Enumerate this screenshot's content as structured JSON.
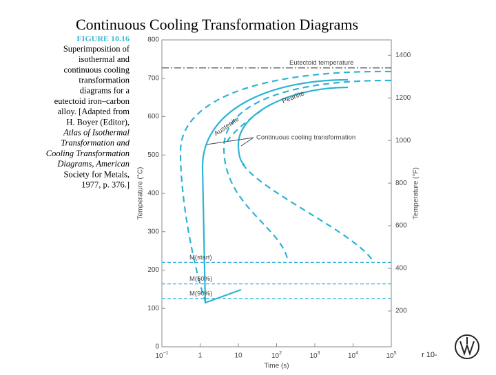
{
  "title": "Continuous Cooling Transformation Diagrams",
  "caption": {
    "figure": "FIGURE 10.16",
    "lines": [
      "Superimposition of",
      "isothermal and",
      "continuous cooling",
      "transformation",
      "diagrams for a",
      "eutectoid iron–carbon",
      "alloy. [Adapted from",
      "H. Boyer (Editor),",
      "Atlas of Isothermal",
      "Transformation and",
      "Cooling Transformation",
      "Diagrams, American",
      "Society for Metals,",
      "1977, p. 376.]"
    ]
  },
  "footer": "r 10-",
  "chart_data": {
    "type": "line",
    "xlabel": "Time (s)",
    "ylabel": "Temperature (°C)",
    "y2label": "Temperature (°F)",
    "xscale": "log",
    "xlim": [
      0.1,
      100000
    ],
    "xticks": [
      {
        "value": 0.1,
        "label": "10",
        "exponent": "−1"
      },
      1,
      10,
      {
        "value": 100,
        "label": "10",
        "exponent": "2"
      },
      {
        "value": 1000,
        "label": "10",
        "exponent": "3"
      },
      {
        "value": 10000,
        "label": "10",
        "exponent": "4"
      },
      {
        "value": 100000,
        "label": "10",
        "exponent": "5"
      }
    ],
    "ylim": [
      0,
      800
    ],
    "yticks": [
      0,
      100,
      200,
      300,
      400,
      500,
      600,
      700,
      800
    ],
    "y2lim": [
      32,
      1472
    ],
    "y2ticks": [
      200,
      400,
      600,
      800,
      1000,
      1200,
      1400
    ],
    "reference_lines": [
      {
        "label": "Eutectoid temperature",
        "value": 727,
        "color": "#555555",
        "style": "dashdot"
      },
      {
        "label": "M(start)",
        "value": 220,
        "color": "#3bb6d6",
        "style": "dashed"
      },
      {
        "label": "M(50%)",
        "value": 164,
        "color": "#3bb6d6",
        "style": "dashed"
      },
      {
        "label": "M(90%)",
        "value": 126,
        "color": "#3bb6d6",
        "style": "dashed"
      }
    ],
    "annotations": [
      "Pearlite",
      "Austenite",
      "Continuous cooling transformation"
    ]
  }
}
